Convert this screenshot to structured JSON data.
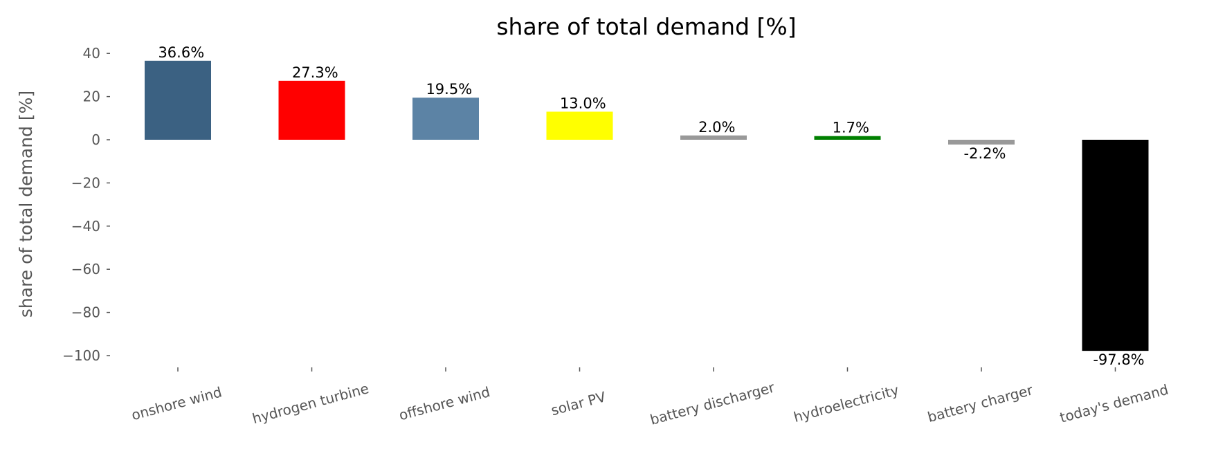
{
  "chart_data": {
    "type": "bar",
    "title": "share of total demand [%]",
    "xlabel": "",
    "ylabel": "share of total demand [%]",
    "ylim": [
      -105,
      45
    ],
    "yticks": [
      40,
      20,
      0,
      -20,
      -40,
      -60,
      -80,
      -100
    ],
    "ytick_labels": [
      "40",
      "20",
      "0",
      "−20",
      "−40",
      "−60",
      "−80",
      "−100"
    ],
    "grid": false,
    "categories": [
      "onshore wind",
      "hydrogen turbine",
      "offshore wind",
      "solar PV",
      "battery discharger",
      "hydroelectricity",
      "battery charger",
      "today's demand"
    ],
    "values": [
      36.6,
      27.3,
      19.5,
      13.0,
      2.0,
      1.7,
      -2.2,
      -97.8
    ],
    "data_labels": [
      "36.6%",
      "27.3%",
      "19.5%",
      "13.0%",
      "2.0%",
      "1.7%",
      "-2.2%",
      "-97.8%"
    ],
    "colors": [
      "#3b6182",
      "#ff0000",
      "#5c83a5",
      "#ffff00",
      "#999999",
      "#008000",
      "#999999",
      "#000000"
    ]
  }
}
